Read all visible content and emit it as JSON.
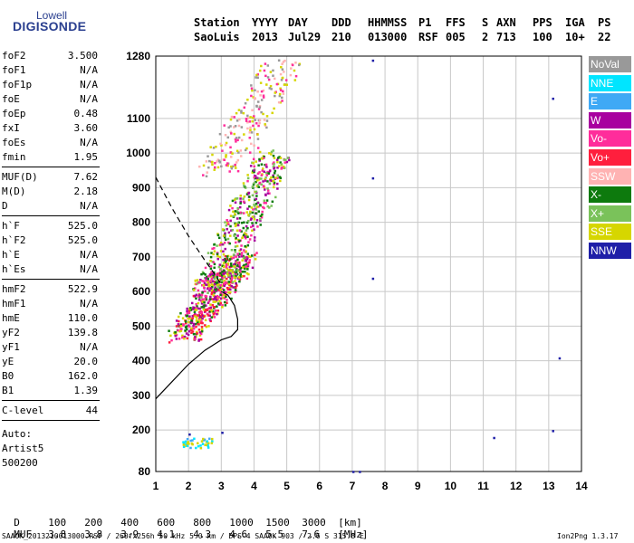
{
  "logo": {
    "line1": "Lowell",
    "line2": "DIGISONDE"
  },
  "header": {
    "row1": [
      "Station",
      "YYYY",
      "DAY",
      "DDD",
      "HHMMSS",
      "P1",
      "FFS",
      "S",
      "AXN",
      "PPS",
      "IGA",
      "PS"
    ],
    "row2": [
      "SaoLuis",
      "2013",
      "Jul29",
      "210",
      "013000",
      "RSF",
      "005",
      "2",
      "713",
      "100",
      "10+",
      "22"
    ]
  },
  "params": {
    "group1": [
      {
        "k": "foF2",
        "v": "3.500"
      },
      {
        "k": "foF1",
        "v": "N/A"
      },
      {
        "k": "foF1p",
        "v": "N/A"
      },
      {
        "k": "foE",
        "v": "N/A"
      },
      {
        "k": "foEp",
        "v": "0.48"
      },
      {
        "k": "fxI",
        "v": "3.60"
      },
      {
        "k": "foEs",
        "v": "N/A"
      },
      {
        "k": "fmin",
        "v": "1.95"
      }
    ],
    "group2": [
      {
        "k": "MUF(D)",
        "v": "7.62"
      },
      {
        "k": "M(D)",
        "v": "2.18"
      },
      {
        "k": "D",
        "v": "N/A"
      }
    ],
    "group3": [
      {
        "k": "h`F",
        "v": "525.0"
      },
      {
        "k": "h`F2",
        "v": "525.0"
      },
      {
        "k": "h`E",
        "v": "N/A"
      },
      {
        "k": "h`Es",
        "v": "N/A"
      }
    ],
    "group4": [
      {
        "k": "hmF2",
        "v": "522.9"
      },
      {
        "k": "hmF1",
        "v": "N/A"
      },
      {
        "k": "hmE",
        "v": "110.0"
      },
      {
        "k": "yF2",
        "v": "139.8"
      },
      {
        "k": "yF1",
        "v": "N/A"
      },
      {
        "k": "yE",
        "v": "20.0"
      },
      {
        "k": "B0",
        "v": "162.0"
      },
      {
        "k": "B1",
        "v": "1.39"
      }
    ],
    "group5": [
      {
        "k": "C-level",
        "v": "44"
      }
    ],
    "auto": [
      "Auto:",
      "Artist5",
      "500200"
    ]
  },
  "legend": [
    {
      "label": "NoVal",
      "color": "#999999"
    },
    {
      "label": "NNE",
      "color": "#00e5ff"
    },
    {
      "label": "E",
      "color": "#3fa9f5"
    },
    {
      "label": "W",
      "color": "#a8009f"
    },
    {
      "label": "Vo-",
      "color": "#ff2d9b"
    },
    {
      "label": "Vo+",
      "color": "#ff1f3d"
    },
    {
      "label": "SSW",
      "color": "#ffb3b3"
    },
    {
      "label": "X-",
      "color": "#0d7a0d"
    },
    {
      "label": "X+",
      "color": "#7ac25a"
    },
    {
      "label": "SSE",
      "color": "#d6d600"
    },
    {
      "label": "NNW",
      "color": "#1f1fa8"
    }
  ],
  "table": {
    "row1_label": "D",
    "row1_vals": [
      "100",
      "200",
      "400",
      "600",
      "800",
      "1000",
      "1500",
      "3000"
    ],
    "row1_unit": "[km]",
    "row2_label": "MUF",
    "row2_vals": [
      "3.8",
      "3.8",
      "3.9",
      "4.1",
      "4.3",
      "4.6",
      "5.5",
      "7.6"
    ],
    "row2_unit": "[MHz]"
  },
  "footer": {
    "left": "SAA0K_2013210013000.RSF / 260fx256h 50 kHz 5.0 km / DPS-4 SAA0K 903 / 2.6 S 315.8 E",
    "right": "Ion2Png 1.3.17"
  },
  "chart_data": {
    "type": "scatter",
    "xlim": [
      1,
      14
    ],
    "ylim": [
      80,
      1280
    ],
    "x_ticks": [
      1,
      2,
      3,
      4,
      5,
      6,
      7,
      8,
      9,
      10,
      11,
      12,
      13,
      14
    ],
    "y_ticks": [
      80,
      200,
      300,
      400,
      500,
      600,
      700,
      800,
      900,
      1000,
      1100,
      1280
    ],
    "grid": true,
    "profile_curve": [
      [
        1.0,
        290
      ],
      [
        1.5,
        340
      ],
      [
        2.0,
        390
      ],
      [
        2.5,
        430
      ],
      [
        3.0,
        460
      ],
      [
        3.3,
        470
      ],
      [
        3.5,
        490
      ],
      [
        3.5,
        520
      ],
      [
        3.4,
        560
      ],
      [
        3.2,
        590
      ],
      [
        3.0,
        600
      ]
    ],
    "dashed_curve": [
      [
        1.0,
        930
      ],
      [
        1.5,
        840
      ],
      [
        2.0,
        760
      ],
      [
        2.5,
        690
      ],
      [
        2.8,
        650
      ],
      [
        3.0,
        620
      ]
    ],
    "clusters": [
      {
        "name": "F-trace",
        "x": [
          1.8,
          3.6
        ],
        "y": [
          470,
          700
        ],
        "colors": [
          "#ff2d9b",
          "#a8009f",
          "#ff1f3d",
          "#0d7a0d",
          "#d6d600"
        ]
      },
      {
        "name": "F-upper",
        "x": [
          2.6,
          4.6
        ],
        "y": [
          600,
          1000
        ],
        "colors": [
          "#d6d600",
          "#7ac25a",
          "#ff2d9b",
          "#a8009f",
          "#0d7a0d"
        ]
      },
      {
        "name": "second-hop",
        "x": [
          2.8,
          5.0
        ],
        "y": [
          950,
          1270
        ],
        "colors": [
          "#ffb3b3",
          "#d6d600",
          "#ff2d9b",
          "#999999"
        ]
      },
      {
        "name": "Es",
        "x": [
          1.8,
          2.7
        ],
        "y": [
          150,
          180
        ],
        "colors": [
          "#00e5ff",
          "#3fa9f5",
          "#d6d600"
        ]
      }
    ],
    "isolated_points": [
      [
        7.6,
        1270
      ],
      [
        7.6,
        930
      ],
      [
        7.6,
        640
      ],
      [
        13.1,
        1160
      ],
      [
        13.3,
        410
      ],
      [
        11.3,
        180
      ],
      [
        13.1,
        200
      ],
      [
        7.0,
        82
      ],
      [
        7.2,
        82
      ],
      [
        3.0,
        195
      ],
      [
        2.0,
        190
      ]
    ]
  }
}
